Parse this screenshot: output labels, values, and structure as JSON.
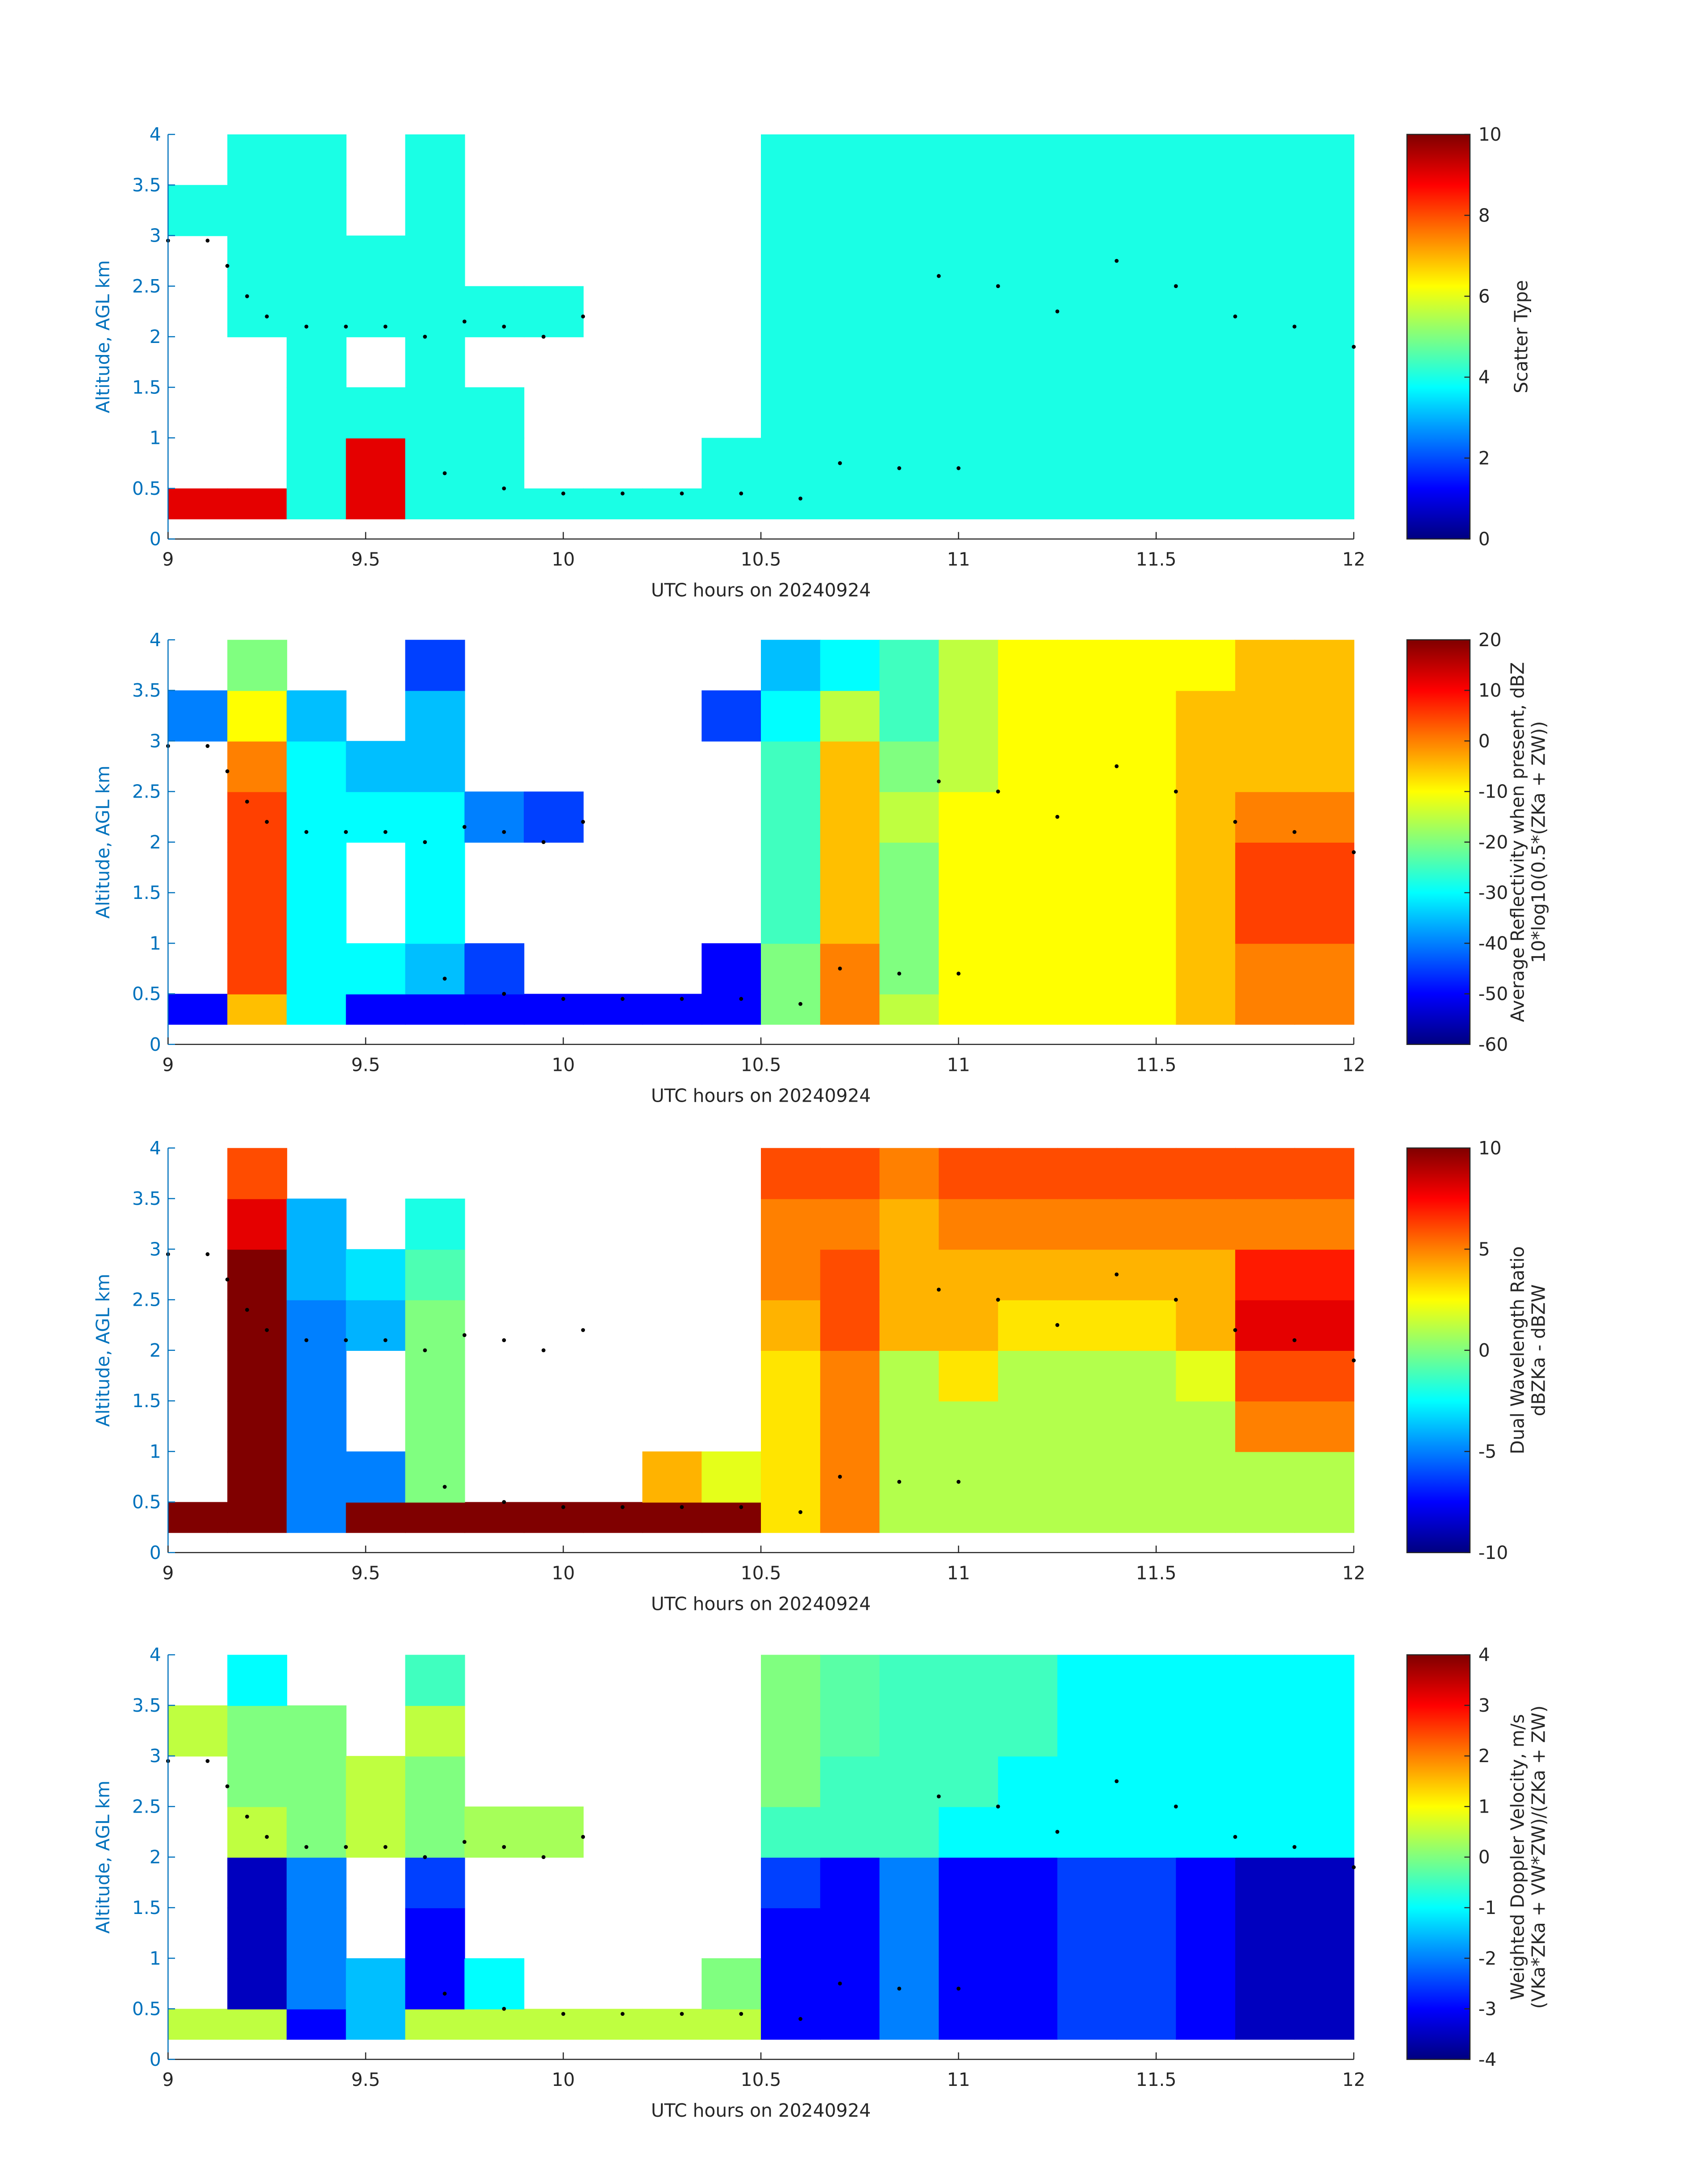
{
  "chart_data": [
    {
      "type": "heatmap",
      "colormap": "jet",
      "xlabel": "UTC hours on 20240924",
      "ylabel": "Altitude, AGL km",
      "clabel": [
        "Scatter Type"
      ],
      "xlim": [
        9,
        12
      ],
      "xticks": [
        9,
        9.5,
        10,
        10.5,
        11,
        11.5,
        12
      ],
      "ylim": [
        0,
        4
      ],
      "yticks": [
        0,
        0.5,
        1,
        1.5,
        2,
        2.5,
        3,
        3.5,
        4
      ],
      "clim": [
        0,
        10
      ],
      "cticks": [
        0,
        2,
        4,
        6,
        8,
        10
      ],
      "xbins": [
        9,
        9.15,
        9.3,
        9.45,
        9.6,
        9.75,
        9.9,
        10.05,
        10.2,
        10.35,
        10.5,
        10.65,
        10.8,
        10.95,
        11.1,
        11.25,
        11.4,
        11.55,
        11.7,
        11.85,
        12
      ],
      "ybins": [
        0.2,
        0.5,
        1,
        1.5,
        2,
        2.5,
        3,
        3.5,
        4
      ],
      "values": [
        [
          9,
          9,
          4,
          9,
          4,
          4,
          4,
          4,
          4,
          4,
          4,
          4,
          4,
          4,
          4,
          4,
          4,
          4,
          4,
          4
        ],
        [
          null,
          null,
          4,
          9,
          4,
          4,
          null,
          null,
          null,
          4,
          4,
          4,
          4,
          4,
          4,
          4,
          4,
          4,
          4,
          4
        ],
        [
          null,
          null,
          4,
          4,
          4,
          4,
          null,
          null,
          null,
          null,
          4,
          4,
          4,
          4,
          4,
          4,
          4,
          4,
          4,
          4
        ],
        [
          null,
          null,
          4,
          null,
          4,
          null,
          null,
          null,
          null,
          null,
          4,
          4,
          4,
          4,
          4,
          4,
          4,
          4,
          4,
          4
        ],
        [
          null,
          4,
          4,
          4,
          4,
          4,
          4,
          null,
          null,
          null,
          4,
          4,
          4,
          4,
          4,
          4,
          4,
          4,
          4,
          4
        ],
        [
          null,
          4,
          4,
          4,
          4,
          null,
          null,
          null,
          null,
          null,
          4,
          4,
          4,
          4,
          4,
          4,
          4,
          4,
          4,
          4
        ],
        [
          4,
          4,
          4,
          null,
          4,
          null,
          null,
          null,
          null,
          null,
          4,
          4,
          4,
          4,
          4,
          4,
          4,
          4,
          4,
          4
        ],
        [
          null,
          4,
          4,
          null,
          4,
          null,
          null,
          null,
          null,
          null,
          4,
          4,
          4,
          4,
          4,
          4,
          4,
          4,
          4,
          4
        ]
      ],
      "points": {
        "x": [
          9,
          9.1,
          9.15,
          9.2,
          9.25,
          9.35,
          9.45,
          9.55,
          9.65,
          9.75,
          9.85,
          9.95,
          10.05,
          9.7,
          9.85,
          10,
          10.15,
          10.3,
          10.45,
          10.6,
          10.7,
          10.85,
          11,
          10.95,
          11.1,
          11.25,
          11.4,
          11.55,
          11.7,
          11.85,
          12
        ],
        "y": [
          2.95,
          2.95,
          2.7,
          2.4,
          2.2,
          2.1,
          2.1,
          2.1,
          2.0,
          2.15,
          2.1,
          2.0,
          2.2,
          0.65,
          0.5,
          0.45,
          0.45,
          0.45,
          0.45,
          0.4,
          0.75,
          0.7,
          0.7,
          2.6,
          2.5,
          2.25,
          2.75,
          2.5,
          2.2,
          2.1,
          1.9
        ]
      }
    },
    {
      "type": "heatmap",
      "colormap": "jet",
      "xlabel": "UTC hours on 20240924",
      "ylabel": "Altitude, AGL km",
      "clabel": [
        "Average Reflectivity when present, dBZ",
        "10*log10(0.5*(ZKa + ZW))"
      ],
      "xlim": [
        9,
        12
      ],
      "xticks": [
        9,
        9.5,
        10,
        10.5,
        11,
        11.5,
        12
      ],
      "ylim": [
        0,
        4
      ],
      "yticks": [
        0,
        0.5,
        1,
        1.5,
        2,
        2.5,
        3,
        3.5,
        4
      ],
      "clim": [
        -60,
        20
      ],
      "cticks": [
        -60,
        -50,
        -40,
        -30,
        -20,
        -10,
        0,
        10,
        20
      ],
      "xbins": [
        9,
        9.15,
        9.3,
        9.45,
        9.6,
        9.75,
        9.9,
        10.05,
        10.2,
        10.35,
        10.5,
        10.65,
        10.8,
        10.95,
        11.1,
        11.25,
        11.4,
        11.55,
        11.7,
        11.85,
        12
      ],
      "ybins": [
        0.2,
        0.5,
        1,
        1.5,
        2,
        2.5,
        3,
        3.5,
        4
      ],
      "values": [
        [
          -50,
          -5,
          -30,
          -50,
          -50,
          -50,
          -50,
          -50,
          -50,
          -50,
          -20,
          0,
          -15,
          -10,
          -10,
          -10,
          -10,
          -5,
          0,
          0
        ],
        [
          null,
          5,
          -30,
          -30,
          -35,
          -45,
          null,
          null,
          null,
          -50,
          -20,
          0,
          -20,
          -10,
          -10,
          -10,
          -10,
          -5,
          0,
          0
        ],
        [
          null,
          5,
          -30,
          null,
          -30,
          null,
          null,
          null,
          null,
          null,
          -25,
          -5,
          -20,
          -10,
          -10,
          -10,
          -10,
          -5,
          5,
          5
        ],
        [
          null,
          5,
          -30,
          null,
          -30,
          null,
          null,
          null,
          null,
          null,
          -25,
          -5,
          -20,
          -10,
          -10,
          -10,
          -10,
          -5,
          5,
          5
        ],
        [
          null,
          5,
          -30,
          -30,
          -30,
          -40,
          -45,
          null,
          null,
          null,
          -25,
          -5,
          -15,
          -10,
          -10,
          -10,
          -10,
          -5,
          0,
          0
        ],
        [
          null,
          0,
          -30,
          -35,
          -35,
          null,
          null,
          null,
          null,
          null,
          -25,
          -5,
          -20,
          -15,
          -10,
          -10,
          -10,
          -5,
          -5,
          -5
        ],
        [
          -40,
          -10,
          -35,
          null,
          -35,
          null,
          null,
          null,
          null,
          -45,
          -30,
          -15,
          -25,
          -15,
          -10,
          -10,
          -10,
          -5,
          -5,
          -5
        ],
        [
          null,
          -20,
          null,
          null,
          -45,
          null,
          null,
          null,
          null,
          null,
          -35,
          -30,
          -25,
          -15,
          -10,
          -10,
          -10,
          -10,
          -5,
          -5
        ]
      ],
      "points": {
        "x": [
          9,
          9.1,
          9.15,
          9.2,
          9.25,
          9.35,
          9.45,
          9.55,
          9.65,
          9.75,
          9.85,
          9.95,
          10.05,
          9.7,
          9.85,
          10,
          10.15,
          10.3,
          10.45,
          10.6,
          10.7,
          10.85,
          11,
          10.95,
          11.1,
          11.25,
          11.4,
          11.55,
          11.7,
          11.85,
          12
        ],
        "y": [
          2.95,
          2.95,
          2.7,
          2.4,
          2.2,
          2.1,
          2.1,
          2.1,
          2.0,
          2.15,
          2.1,
          2.0,
          2.2,
          0.65,
          0.5,
          0.45,
          0.45,
          0.45,
          0.45,
          0.4,
          0.75,
          0.7,
          0.7,
          2.6,
          2.5,
          2.25,
          2.75,
          2.5,
          2.2,
          2.1,
          1.9
        ]
      }
    },
    {
      "type": "heatmap",
      "colormap": "jet",
      "xlabel": "UTC hours on 20240924",
      "ylabel": "Altitude, AGL km",
      "clabel": [
        "Dual Wavelength Ratio",
        "dBZKa - dBZW"
      ],
      "xlim": [
        9,
        12
      ],
      "xticks": [
        9,
        9.5,
        10,
        10.5,
        11,
        11.5,
        12
      ],
      "ylim": [
        0,
        4
      ],
      "yticks": [
        0,
        0.5,
        1,
        1.5,
        2,
        2.5,
        3,
        3.5,
        4
      ],
      "clim": [
        -10,
        10
      ],
      "cticks": [
        -10,
        -5,
        0,
        5,
        10
      ],
      "xbins": [
        9,
        9.15,
        9.3,
        9.45,
        9.6,
        9.75,
        9.9,
        10.05,
        10.2,
        10.35,
        10.5,
        10.65,
        10.8,
        10.95,
        11.1,
        11.25,
        11.4,
        11.55,
        11.7,
        11.85,
        12
      ],
      "ybins": [
        0.2,
        0.5,
        1,
        1.5,
        2,
        2.5,
        3,
        3.5,
        4
      ],
      "values": [
        [
          10,
          10,
          -5,
          10,
          10,
          10,
          10,
          10,
          10,
          10,
          3,
          5,
          1,
          1,
          1,
          1,
          1,
          1,
          1,
          1
        ],
        [
          null,
          10,
          -5,
          -5,
          0,
          null,
          null,
          null,
          4,
          2,
          3,
          5,
          1,
          1,
          1,
          1,
          1,
          1,
          1,
          1
        ],
        [
          null,
          10,
          -5,
          null,
          0,
          null,
          null,
          null,
          null,
          null,
          3,
          5,
          1,
          1,
          1,
          1,
          1,
          1,
          5,
          5
        ],
        [
          null,
          10,
          -5,
          null,
          0,
          null,
          null,
          null,
          null,
          null,
          3,
          5,
          1,
          3,
          1,
          1,
          1,
          2,
          6,
          6
        ],
        [
          null,
          10,
          -5,
          -4,
          0,
          null,
          null,
          null,
          null,
          null,
          4,
          6,
          4,
          4,
          3,
          3,
          3,
          4,
          8,
          8
        ],
        [
          null,
          10,
          -4,
          -3,
          -1,
          null,
          null,
          null,
          null,
          null,
          5,
          6,
          4,
          4,
          4,
          4,
          4,
          4,
          7,
          7
        ],
        [
          null,
          8,
          -4,
          null,
          -2,
          null,
          null,
          null,
          null,
          null,
          5,
          5,
          4,
          5,
          5,
          5,
          5,
          5,
          5,
          5
        ],
        [
          null,
          6,
          null,
          null,
          null,
          null,
          null,
          null,
          null,
          null,
          6,
          6,
          5,
          6,
          6,
          6,
          6,
          6,
          6,
          6
        ]
      ],
      "points": {
        "x": [
          9,
          9.1,
          9.15,
          9.2,
          9.25,
          9.35,
          9.45,
          9.55,
          9.65,
          9.75,
          9.85,
          9.95,
          10.05,
          9.7,
          9.85,
          10,
          10.15,
          10.3,
          10.45,
          10.6,
          10.7,
          10.85,
          11,
          10.95,
          11.1,
          11.25,
          11.4,
          11.55,
          11.7,
          11.85,
          12
        ],
        "y": [
          2.95,
          2.95,
          2.7,
          2.4,
          2.2,
          2.1,
          2.1,
          2.1,
          2.0,
          2.15,
          2.1,
          2.0,
          2.2,
          0.65,
          0.5,
          0.45,
          0.45,
          0.45,
          0.45,
          0.4,
          0.75,
          0.7,
          0.7,
          2.6,
          2.5,
          2.25,
          2.75,
          2.5,
          2.2,
          2.1,
          1.9
        ]
      }
    },
    {
      "type": "heatmap",
      "colormap": "jet",
      "xlabel": "UTC hours on 20240924",
      "ylabel": "Altitude, AGL km",
      "clabel": [
        "Weighted Doppler Velocity, m/s",
        "(VKa*ZKa + VW*ZW)/(ZKa + ZW)"
      ],
      "xlim": [
        9,
        12
      ],
      "xticks": [
        9,
        9.5,
        10,
        10.5,
        11,
        11.5,
        12
      ],
      "ylim": [
        0,
        4
      ],
      "yticks": [
        0,
        0.5,
        1,
        1.5,
        2,
        2.5,
        3,
        3.5,
        4
      ],
      "clim": [
        -4,
        4
      ],
      "cticks": [
        -4,
        -3,
        -2,
        -1,
        0,
        1,
        2,
        3,
        4
      ],
      "xbins": [
        9,
        9.15,
        9.3,
        9.45,
        9.6,
        9.75,
        9.9,
        10.05,
        10.2,
        10.35,
        10.5,
        10.65,
        10.8,
        10.95,
        11.1,
        11.25,
        11.4,
        11.55,
        11.7,
        11.85,
        12
      ],
      "ybins": [
        0.2,
        0.5,
        1,
        1.5,
        2,
        2.5,
        3,
        3.5,
        4
      ],
      "values": [
        [
          0.5,
          0.5,
          -3,
          -1.5,
          0.5,
          0.5,
          0.5,
          0.5,
          0.5,
          0.5,
          -3,
          -3,
          -2,
          -3,
          -3,
          -2.5,
          -2.5,
          -3,
          -3.5,
          -3.5
        ],
        [
          null,
          -3.5,
          -2,
          -1.5,
          -3,
          -1,
          null,
          null,
          null,
          0,
          -3,
          -3,
          -2,
          -3,
          -3,
          -2.5,
          -2.5,
          -3,
          -3.5,
          -3.5
        ],
        [
          null,
          -3.5,
          -2,
          null,
          -3,
          null,
          null,
          null,
          null,
          null,
          -3,
          -3,
          -2,
          -3,
          -3,
          -2.5,
          -2.5,
          -3,
          -3.5,
          -3.5
        ],
        [
          null,
          -3.5,
          -2,
          null,
          -2.5,
          null,
          null,
          null,
          null,
          null,
          -2.5,
          -3,
          -2,
          -3,
          -3,
          -2.5,
          -2.5,
          -3,
          -3.5,
          -3.5
        ],
        [
          null,
          0.5,
          0,
          0.5,
          0,
          0.3,
          0.3,
          null,
          null,
          null,
          -0.5,
          -0.5,
          -0.5,
          -1,
          -1,
          -1,
          -1,
          -1,
          -1,
          -1
        ],
        [
          null,
          0,
          0,
          0.5,
          0,
          null,
          null,
          null,
          null,
          null,
          0,
          -0.5,
          -0.5,
          -0.5,
          -1,
          -1,
          -1,
          -1,
          -1,
          -1
        ],
        [
          0.5,
          0,
          0,
          null,
          0.5,
          null,
          null,
          null,
          null,
          null,
          0,
          -0.3,
          -0.5,
          -0.5,
          -0.5,
          -1,
          -1,
          -1,
          -1,
          -1
        ],
        [
          null,
          -1,
          null,
          null,
          -0.5,
          null,
          null,
          null,
          null,
          null,
          0,
          -0.3,
          -0.5,
          -0.5,
          -0.5,
          -1,
          -1,
          -1,
          -1,
          -1
        ]
      ],
      "points": {
        "x": [
          9,
          9.1,
          9.15,
          9.2,
          9.25,
          9.35,
          9.45,
          9.55,
          9.65,
          9.75,
          9.85,
          9.95,
          10.05,
          9.7,
          9.85,
          10,
          10.15,
          10.3,
          10.45,
          10.6,
          10.7,
          10.85,
          11,
          10.95,
          11.1,
          11.25,
          11.4,
          11.55,
          11.7,
          11.85,
          12
        ],
        "y": [
          2.95,
          2.95,
          2.7,
          2.4,
          2.2,
          2.1,
          2.1,
          2.1,
          2.0,
          2.15,
          2.1,
          2.0,
          2.2,
          0.65,
          0.5,
          0.45,
          0.45,
          0.45,
          0.45,
          0.4,
          0.75,
          0.7,
          0.7,
          2.6,
          2.5,
          2.25,
          2.75,
          2.5,
          2.2,
          2.1,
          1.9
        ]
      }
    }
  ]
}
